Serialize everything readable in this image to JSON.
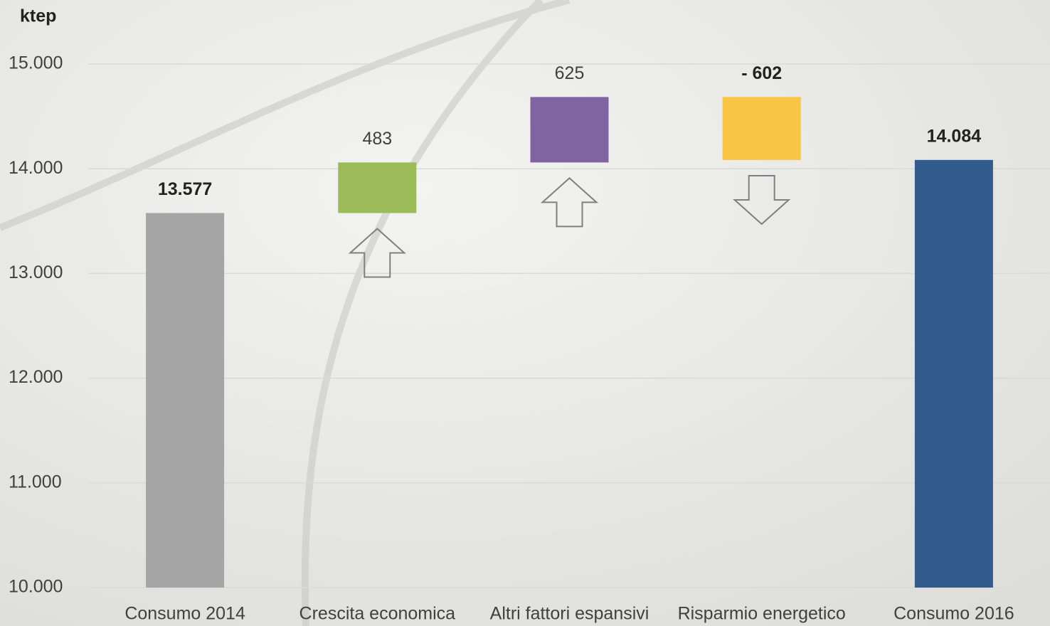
{
  "chart_data": {
    "type": "waterfall",
    "y_label": "ktep",
    "categories": [
      "Consumo 2014",
      "Crescita economica",
      "Altri fattori espansivi",
      "Risparmio energetico",
      "Consumo 2016"
    ],
    "values": [
      13577,
      483,
      625,
      -602,
      14084
    ],
    "value_labels": [
      "13.577",
      "483",
      "625",
      "- 602",
      "14.084"
    ],
    "colors": [
      "#a5a5a5",
      "#9bbb59",
      "#8064a2",
      "#f9c644",
      "#335c8e"
    ],
    "ylim": [
      10000,
      15000
    ],
    "yticks": [
      {
        "value": 10000,
        "label": "10.000"
      },
      {
        "value": 11000,
        "label": "11.000"
      },
      {
        "value": 12000,
        "label": "12.000"
      },
      {
        "value": 13000,
        "label": "13.000"
      },
      {
        "value": 14000,
        "label": "14.000"
      },
      {
        "value": 15000,
        "label": "15.000"
      }
    ],
    "grid": true
  }
}
